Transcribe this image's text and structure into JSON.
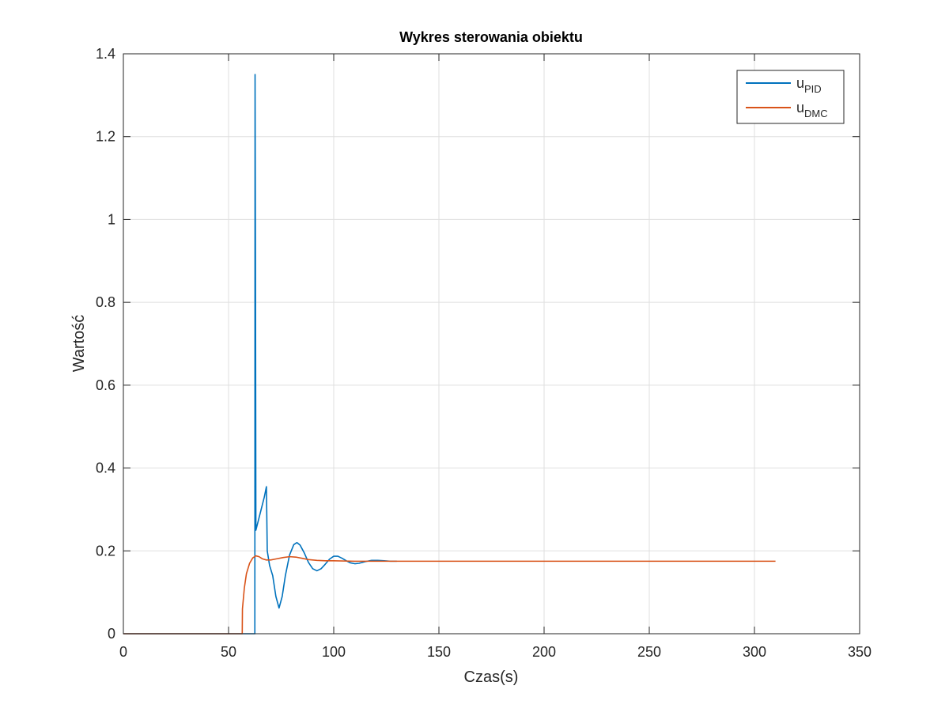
{
  "chart_data": {
    "type": "line",
    "title": "Wykres sterowania obiektu",
    "xlabel": "Czas(s)",
    "ylabel": "Wartość",
    "xlim": [
      0,
      350
    ],
    "ylim": [
      0,
      1.4
    ],
    "xticks": [
      0,
      50,
      100,
      150,
      200,
      250,
      300,
      350
    ],
    "yticks": [
      0,
      0.2,
      0.4,
      0.6,
      0.8,
      1,
      1.2,
      1.4
    ],
    "xtick_labels": [
      "0",
      "50",
      "100",
      "150",
      "200",
      "250",
      "300",
      "350"
    ],
    "ytick_labels": [
      "0",
      "0.2",
      "0.4",
      "0.6",
      "0.8",
      "1",
      "1.2",
      "1.4"
    ],
    "grid": true,
    "legend_position": "top-right",
    "series": [
      {
        "name": "u_PID",
        "legend_base": "u",
        "legend_sub": "PID",
        "color": "#0072bd",
        "points": [
          [
            0,
            0
          ],
          [
            62.5,
            0
          ],
          [
            62.6,
            1.35
          ],
          [
            62.8,
            0.9
          ],
          [
            63,
            0.25
          ],
          [
            65,
            0.29
          ],
          [
            67,
            0.33
          ],
          [
            68,
            0.355
          ],
          [
            68.4,
            0.2
          ],
          [
            69.5,
            0.165
          ],
          [
            71,
            0.14
          ],
          [
            72.5,
            0.09
          ],
          [
            74,
            0.062
          ],
          [
            75.5,
            0.09
          ],
          [
            77,
            0.14
          ],
          [
            79,
            0.19
          ],
          [
            81,
            0.215
          ],
          [
            82.5,
            0.22
          ],
          [
            84,
            0.214
          ],
          [
            86,
            0.195
          ],
          [
            88,
            0.172
          ],
          [
            90,
            0.157
          ],
          [
            92,
            0.152
          ],
          [
            94,
            0.157
          ],
          [
            96,
            0.168
          ],
          [
            98,
            0.18
          ],
          [
            100,
            0.187
          ],
          [
            102,
            0.187
          ],
          [
            104,
            0.182
          ],
          [
            106,
            0.176
          ],
          [
            108,
            0.171
          ],
          [
            110,
            0.169
          ],
          [
            112,
            0.17
          ],
          [
            115,
            0.174
          ],
          [
            118,
            0.177
          ],
          [
            121,
            0.177
          ],
          [
            124,
            0.176
          ],
          [
            127,
            0.175
          ],
          [
            130,
            0.175
          ]
        ]
      },
      {
        "name": "u_DMC",
        "legend_base": "u",
        "legend_sub": "DMC",
        "color": "#d95319",
        "points": [
          [
            0,
            0
          ],
          [
            56.5,
            0
          ],
          [
            56.6,
            0.06
          ],
          [
            57.5,
            0.11
          ],
          [
            58.5,
            0.145
          ],
          [
            60,
            0.17
          ],
          [
            61.5,
            0.183
          ],
          [
            63,
            0.188
          ],
          [
            64.5,
            0.186
          ],
          [
            66,
            0.181
          ],
          [
            68,
            0.178
          ],
          [
            70,
            0.178
          ],
          [
            73,
            0.181
          ],
          [
            76,
            0.184
          ],
          [
            79,
            0.186
          ],
          [
            82,
            0.185
          ],
          [
            85,
            0.182
          ],
          [
            88,
            0.179
          ],
          [
            92,
            0.177
          ],
          [
            96,
            0.176
          ],
          [
            100,
            0.176
          ],
          [
            110,
            0.175
          ],
          [
            120,
            0.175
          ],
          [
            150,
            0.175
          ],
          [
            200,
            0.175
          ],
          [
            250,
            0.175
          ],
          [
            310,
            0.175
          ]
        ]
      }
    ]
  }
}
